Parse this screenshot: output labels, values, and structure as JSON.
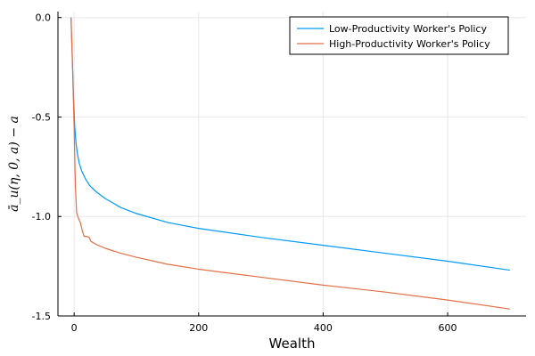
{
  "chart_data": {
    "type": "line",
    "title": "",
    "xlabel": "Wealth",
    "ylabel": "ā_u(η, 0, a) − a",
    "xlim": [
      -26,
      726
    ],
    "ylim": [
      -1.5,
      0.03
    ],
    "xticks": [
      0,
      200,
      400,
      600
    ],
    "yticks": [
      0.0,
      -0.5,
      -1.0,
      -1.5
    ],
    "xtick_labels": [
      "0",
      "200",
      "400",
      "600"
    ],
    "ytick_labels": [
      "0.0",
      "-0.5",
      "-1.0",
      "-1.5"
    ],
    "grid": true,
    "legend_position": "top-right",
    "series": [
      {
        "name": "Low-Productivity Worker's Policy",
        "color": "#009AFA",
        "points": [
          [
            -5,
            0.0
          ],
          [
            -3,
            -0.2
          ],
          [
            -1,
            -0.4
          ],
          [
            1,
            -0.55
          ],
          [
            3,
            -0.63
          ],
          [
            5,
            -0.68
          ],
          [
            8,
            -0.73
          ],
          [
            12,
            -0.77
          ],
          [
            18,
            -0.81
          ],
          [
            25,
            -0.845
          ],
          [
            35,
            -0.875
          ],
          [
            50,
            -0.91
          ],
          [
            75,
            -0.955
          ],
          [
            100,
            -0.985
          ],
          [
            150,
            -1.03
          ],
          [
            200,
            -1.06
          ],
          [
            300,
            -1.105
          ],
          [
            400,
            -1.145
          ],
          [
            500,
            -1.185
          ],
          [
            600,
            -1.225
          ],
          [
            700,
            -1.27
          ]
        ]
      },
      {
        "name": "High-Productivity Worker's Policy",
        "color": "#E26F46",
        "points": [
          [
            -5,
            0.0
          ],
          [
            -3,
            -0.2
          ],
          [
            0,
            -0.55
          ],
          [
            2,
            -0.85
          ],
          [
            4,
            -0.98
          ],
          [
            7,
            -1.01
          ],
          [
            10,
            -1.03
          ],
          [
            13,
            -1.07
          ],
          [
            16,
            -1.1
          ],
          [
            20,
            -1.1
          ],
          [
            24,
            -1.105
          ],
          [
            27,
            -1.125
          ],
          [
            35,
            -1.14
          ],
          [
            50,
            -1.16
          ],
          [
            75,
            -1.185
          ],
          [
            100,
            -1.205
          ],
          [
            150,
            -1.24
          ],
          [
            200,
            -1.265
          ],
          [
            300,
            -1.305
          ],
          [
            400,
            -1.345
          ],
          [
            500,
            -1.38
          ],
          [
            600,
            -1.42
          ],
          [
            700,
            -1.465
          ]
        ]
      }
    ]
  }
}
